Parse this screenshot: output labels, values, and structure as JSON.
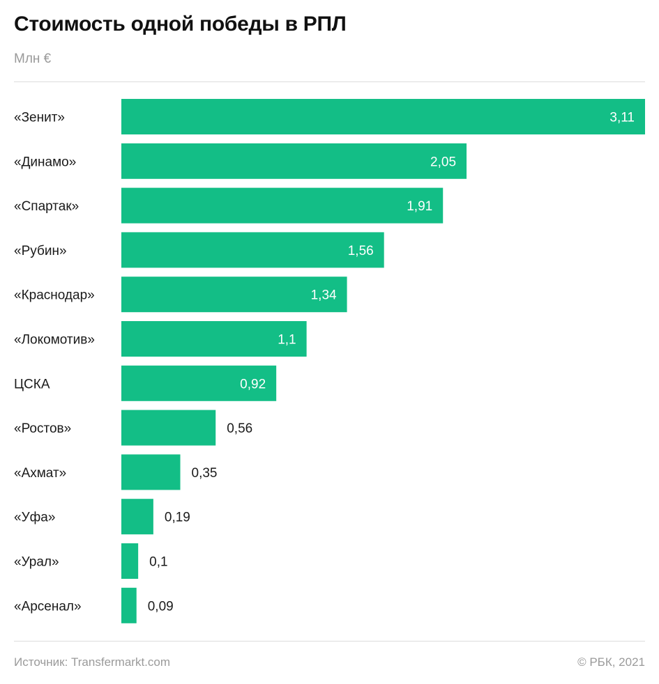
{
  "header": {
    "title": "Стоимость одной победы в РПЛ",
    "subtitle": "Млн €"
  },
  "footer": {
    "source": "Источник: Transfermarkt.com",
    "copyright": "© РБК, 2021"
  },
  "colors": {
    "bar": "#13be86",
    "label_inside": "#ffffff",
    "label_outside": "#1a1a1a"
  },
  "chart_data": {
    "type": "bar",
    "orientation": "horizontal",
    "title": "Стоимость одной победы в РПЛ",
    "unit": "Млн €",
    "categories": [
      "«Зенит»",
      "«Динамо»",
      "«Спартак»",
      "«Рубин»",
      "«Краснодар»",
      "«Локомотив»",
      "ЦСКА",
      "«Ростов»",
      "«Ахмат»",
      "«Уфа»",
      "«Урал»",
      "«Арсенал»"
    ],
    "values": [
      3.11,
      2.05,
      1.91,
      1.56,
      1.34,
      1.1,
      0.92,
      0.56,
      0.35,
      0.19,
      0.1,
      0.09
    ],
    "value_labels": [
      "3,11",
      "2,05",
      "1,91",
      "1,56",
      "1,34",
      "1,1",
      "0,92",
      "0,56",
      "0,35",
      "0,19",
      "0,1",
      "0,09"
    ],
    "xlim": [
      0,
      3.11
    ],
    "grid": false,
    "legend": false
  }
}
